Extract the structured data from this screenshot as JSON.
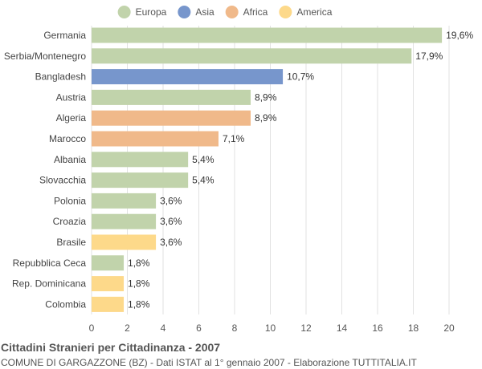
{
  "chart_data": {
    "type": "bar",
    "orientation": "horizontal",
    "title": "Cittadini Stranieri per Cittadinanza - 2007",
    "subtitle": "COMUNE DI GARGAZZONE (BZ) - Dati ISTAT al 1° gennaio 2007 - Elaborazione TUTTITALIA.IT",
    "xlim": [
      0,
      20
    ],
    "xticks": [
      0,
      2,
      4,
      6,
      8,
      10,
      12,
      14,
      16,
      18,
      20
    ],
    "grid": true,
    "legend_position": "top",
    "legend": [
      {
        "name": "Europa",
        "color": "#c1d3ab"
      },
      {
        "name": "Asia",
        "color": "#7796cc"
      },
      {
        "name": "Africa",
        "color": "#f0b98a"
      },
      {
        "name": "America",
        "color": "#fdd98a"
      }
    ],
    "categories": [
      "Germania",
      "Serbia/Montenegro",
      "Bangladesh",
      "Austria",
      "Algeria",
      "Marocco",
      "Albania",
      "Slovacchia",
      "Polonia",
      "Croazia",
      "Brasile",
      "Repubblica Ceca",
      "Rep. Dominicana",
      "Colombia"
    ],
    "values": [
      19.6,
      17.9,
      10.7,
      8.9,
      8.9,
      7.1,
      5.4,
      5.4,
      3.6,
      3.6,
      3.6,
      1.8,
      1.8,
      1.8
    ],
    "value_labels": [
      "19,6%",
      "17,9%",
      "10,7%",
      "8,9%",
      "8,9%",
      "7,1%",
      "5,4%",
      "5,4%",
      "3,6%",
      "3,6%",
      "3,6%",
      "1,8%",
      "1,8%",
      "1,8%"
    ],
    "groups": [
      "Europa",
      "Europa",
      "Asia",
      "Europa",
      "Africa",
      "Africa",
      "Europa",
      "Europa",
      "Europa",
      "Europa",
      "America",
      "Europa",
      "America",
      "America"
    ]
  }
}
